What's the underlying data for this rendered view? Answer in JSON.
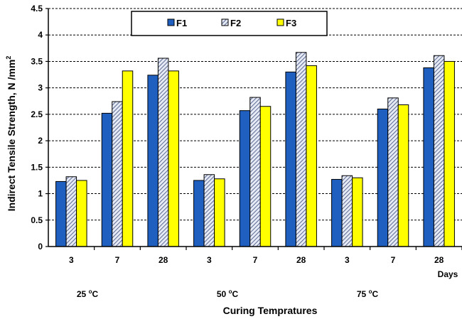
{
  "chart_data": {
    "type": "bar",
    "ylabel": "Indirect Tensile Strength,  N /mm",
    "ylabel_sup": "2",
    "xlabel": "Curing Tempratures",
    "x_unit_label": "Days",
    "ylim": [
      0,
      4.5
    ],
    "ytick_step": 0.5,
    "yticks": [
      "0",
      "0.5",
      "1",
      "1.5",
      "2",
      "2.5",
      "3",
      "3.5",
      "4",
      "4.5"
    ],
    "grid": "horizontal-dashed",
    "legend_position": "top-center",
    "categories": [
      "3",
      "7",
      "28",
      "3",
      "7",
      "28",
      "3",
      "7",
      "28"
    ],
    "temperature_groups": [
      {
        "label": "25 ",
        "sup": "o",
        "unit": "C"
      },
      {
        "label": "50 ",
        "sup": "o",
        "unit": "C"
      },
      {
        "label": "75 ",
        "sup": "o",
        "unit": "C"
      }
    ],
    "series": [
      {
        "name": "F1",
        "color": "#1f5fbf",
        "pattern": "solid",
        "values": [
          1.23,
          2.52,
          3.24,
          1.25,
          2.57,
          3.3,
          1.27,
          2.6,
          3.38
        ]
      },
      {
        "name": "F2",
        "color": "#c8d0e8",
        "pattern": "diagonal-hatch",
        "values": [
          1.32,
          2.74,
          3.56,
          1.36,
          2.82,
          3.67,
          1.34,
          2.81,
          3.61
        ]
      },
      {
        "name": "F3",
        "color": "#ffff00",
        "pattern": "solid",
        "values": [
          1.25,
          3.32,
          3.32,
          1.28,
          2.65,
          3.42,
          1.3,
          2.68,
          3.5
        ]
      }
    ]
  }
}
